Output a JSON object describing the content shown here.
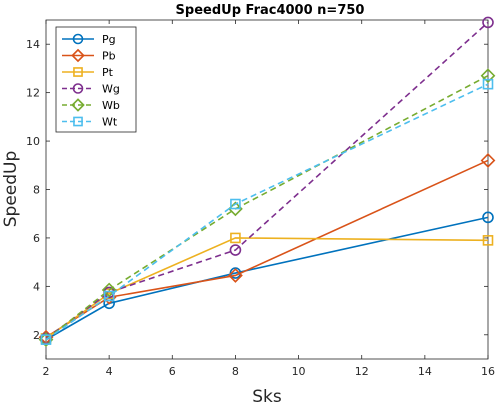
{
  "chart_data": {
    "type": "line",
    "title": "SpeedUp Frac4000 n=750",
    "xlabel": "Sks",
    "ylabel": "SpeedUp",
    "xlim": [
      2,
      16
    ],
    "ylim": [
      1,
      15
    ],
    "xticks": [
      2,
      4,
      6,
      8,
      10,
      12,
      14,
      16
    ],
    "yticks": [
      2,
      4,
      6,
      8,
      10,
      12,
      14
    ],
    "grid": false,
    "legend_position": "top-left",
    "series": [
      {
        "name": "Pg",
        "color": "#0072BD",
        "dash": "solid",
        "marker": "circle",
        "x": [
          2,
          4,
          8,
          16
        ],
        "y": [
          1.8,
          3.3,
          4.55,
          6.85
        ]
      },
      {
        "name": "Pb",
        "color": "#D95319",
        "dash": "solid",
        "marker": "diamond",
        "x": [
          2,
          4,
          8,
          16
        ],
        "y": [
          1.9,
          3.55,
          4.45,
          9.2
        ]
      },
      {
        "name": "Pt",
        "color": "#EDB120",
        "dash": "solid",
        "marker": "square",
        "x": [
          2,
          4,
          8,
          16
        ],
        "y": [
          1.85,
          3.7,
          6.0,
          5.9
        ]
      },
      {
        "name": "Wg",
        "color": "#7E2F8E",
        "dash": "dashed",
        "marker": "circle",
        "x": [
          2,
          4,
          8,
          16
        ],
        "y": [
          1.85,
          3.75,
          5.5,
          14.9
        ]
      },
      {
        "name": "Wb",
        "color": "#77AC30",
        "dash": "dashed",
        "marker": "diamond",
        "x": [
          2,
          4,
          8,
          16
        ],
        "y": [
          1.8,
          3.85,
          7.2,
          12.7
        ]
      },
      {
        "name": "Wt",
        "color": "#4DBEEE",
        "dash": "dashed",
        "marker": "square",
        "x": [
          2,
          4,
          8,
          16
        ],
        "y": [
          1.8,
          3.6,
          7.4,
          12.35
        ]
      }
    ]
  }
}
